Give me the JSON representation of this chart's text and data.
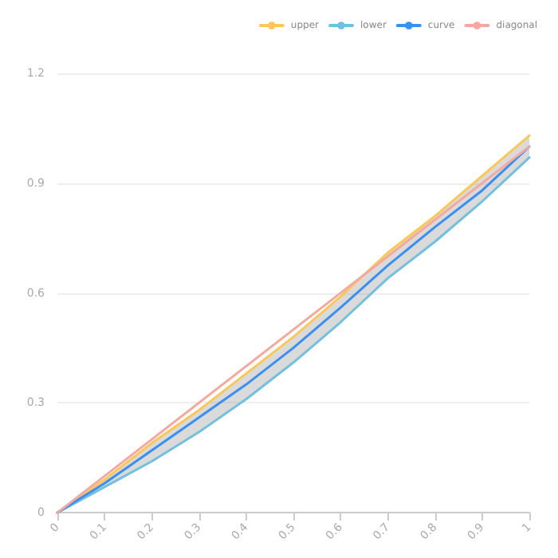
{
  "chart_data": {
    "type": "line",
    "x": [
      0,
      0.1,
      0.2,
      0.3,
      0.4,
      0.5,
      0.6,
      0.7,
      0.8,
      0.9,
      1
    ],
    "series": [
      {
        "name": "upper",
        "color": "#fac858",
        "values": [
          0,
          0.09,
          0.19,
          0.28,
          0.38,
          0.48,
          0.59,
          0.71,
          0.81,
          0.92,
          1.03
        ]
      },
      {
        "name": "lower",
        "color": "#73c0de",
        "values": [
          0,
          0.07,
          0.14,
          0.22,
          0.31,
          0.41,
          0.52,
          0.64,
          0.74,
          0.85,
          0.97
        ]
      },
      {
        "name": "curve",
        "color": "#3b8ff0",
        "values": [
          0,
          0.08,
          0.17,
          0.26,
          0.35,
          0.45,
          0.56,
          0.675,
          0.78,
          0.88,
          1.0
        ],
        "lower": [
          0,
          0.07,
          0.14,
          0.22,
          0.31,
          0.41,
          0.52,
          0.64,
          0.74,
          0.85,
          0.97
        ],
        "upper": [
          0,
          0.09,
          0.19,
          0.28,
          0.38,
          0.48,
          0.59,
          0.71,
          0.81,
          0.92,
          1.03
        ]
      },
      {
        "name": "diagonal",
        "color": "#f4a9a0",
        "x": [
          0,
          1
        ],
        "values": [
          0,
          1
        ]
      }
    ],
    "xlim": [
      0,
      1
    ],
    "xticks": [
      0,
      0.1,
      0.2,
      0.3,
      0.4,
      0.5,
      0.6,
      0.7,
      0.8,
      0.9,
      1
    ],
    "ylim": [
      0,
      1.2
    ],
    "yticks": [
      0,
      0.3,
      0.6,
      0.9,
      1.2
    ],
    "grid": "y",
    "legend": "top right",
    "marker": "none",
    "line_style": "solid"
  }
}
